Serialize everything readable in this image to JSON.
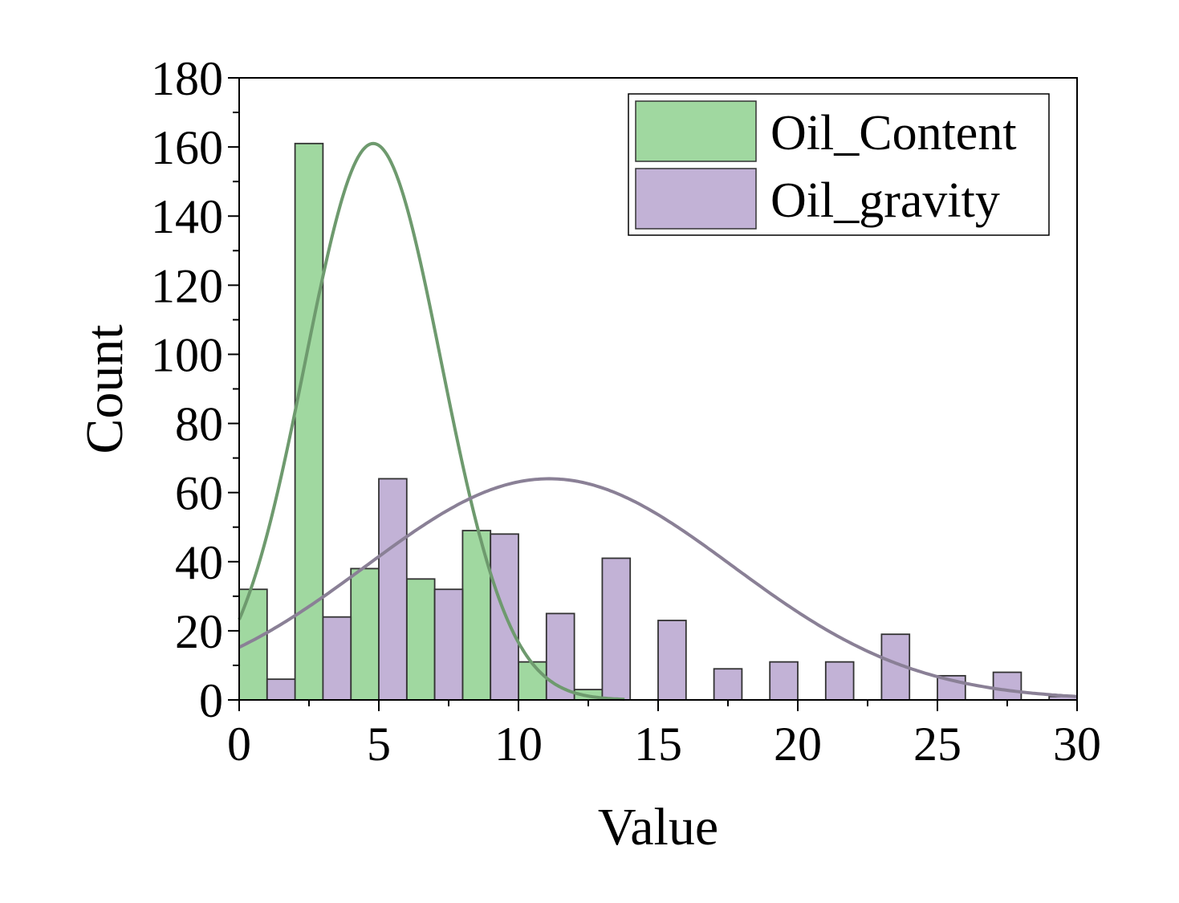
{
  "chart_data": {
    "type": "bar",
    "xlabel": "Value",
    "ylabel": "Count",
    "xlim": [
      0,
      30
    ],
    "ylim": [
      0,
      180
    ],
    "x_ticks": [
      0,
      5,
      10,
      15,
      20,
      25,
      30
    ],
    "y_ticks": [
      0,
      20,
      40,
      60,
      80,
      100,
      120,
      140,
      160,
      180
    ],
    "grid": false,
    "legend_position": "top-right",
    "bin_width": 1,
    "colors": {
      "Oil_Content_fill": "#a0d8a0",
      "Oil_gravity_fill": "#c2b2d6",
      "Oil_Content_curve": "#6e9a6e",
      "Oil_gravity_curve": "#8a8096",
      "bar_edge": "#333333"
    },
    "series": [
      {
        "name": "Oil_Content",
        "bins": [
          {
            "x0": 0,
            "x1": 1,
            "count": 32
          },
          {
            "x0": 2,
            "x1": 3,
            "count": 161
          },
          {
            "x0": 4,
            "x1": 5,
            "count": 38
          },
          {
            "x0": 6,
            "x1": 7,
            "count": 35
          },
          {
            "x0": 8,
            "x1": 9,
            "count": 49
          },
          {
            "x0": 10,
            "x1": 11,
            "count": 11
          },
          {
            "x0": 12,
            "x1": 13,
            "count": 3
          }
        ],
        "fit_curve": {
          "type": "normal",
          "mean": 4.8,
          "sigma": 2.44,
          "peak": 161,
          "x_range": [
            0,
            13.8
          ]
        }
      },
      {
        "name": "Oil_gravity",
        "bins": [
          {
            "x0": 1,
            "x1": 2,
            "count": 6
          },
          {
            "x0": 3,
            "x1": 4,
            "count": 24
          },
          {
            "x0": 5,
            "x1": 6,
            "count": 64
          },
          {
            "x0": 7,
            "x1": 8,
            "count": 32
          },
          {
            "x0": 9,
            "x1": 10,
            "count": 48
          },
          {
            "x0": 11,
            "x1": 12,
            "count": 25
          },
          {
            "x0": 13,
            "x1": 14,
            "count": 41
          },
          {
            "x0": 15,
            "x1": 16,
            "count": 23
          },
          {
            "x0": 17,
            "x1": 18,
            "count": 9
          },
          {
            "x0": 19,
            "x1": 20,
            "count": 11
          },
          {
            "x0": 21,
            "x1": 22,
            "count": 11
          },
          {
            "x0": 23,
            "x1": 24,
            "count": 19
          },
          {
            "x0": 25,
            "x1": 26,
            "count": 7
          },
          {
            "x0": 27,
            "x1": 28,
            "count": 8
          },
          {
            "x0": 29,
            "x1": 30,
            "count": 1
          }
        ],
        "fit_curve": {
          "type": "normal",
          "mean": 11.1,
          "sigma": 6.55,
          "peak": 64,
          "x_range": [
            0,
            30
          ]
        }
      }
    ]
  }
}
